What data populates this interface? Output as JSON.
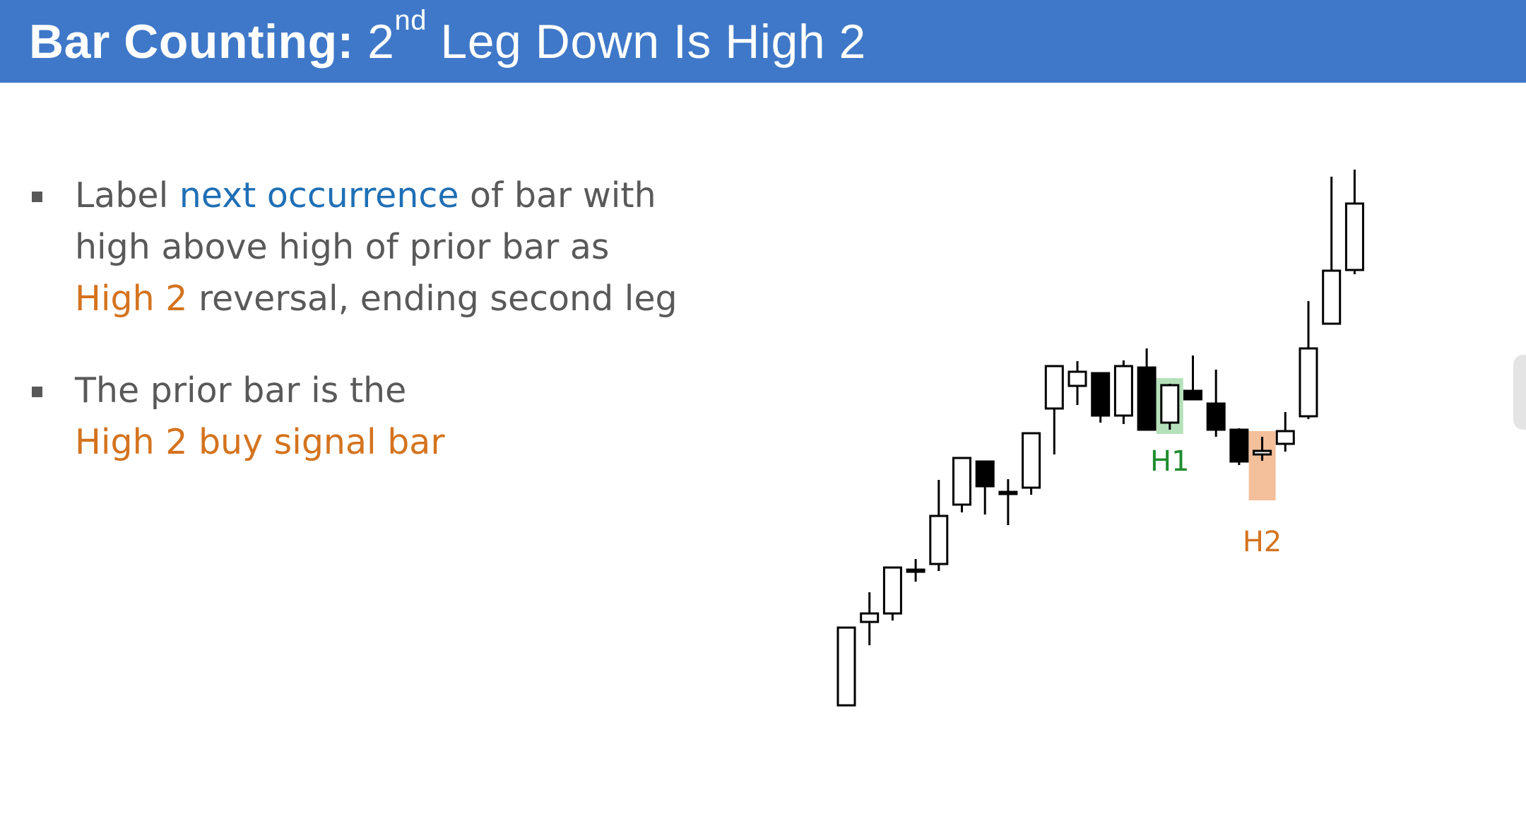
{
  "title": {
    "bold_part": "Bar Counting:",
    "part_2": "2",
    "superscript": "nd",
    "rest": "Leg Down Is High 2"
  },
  "bullets": [
    {
      "pre": "Label",
      "highlight": "next occurrence",
      "mid": "of bar with high above high of prior bar as",
      "orange": "High 2",
      "post": "reversal, ending second leg"
    },
    {
      "pre": "The prior bar is the",
      "orange": "High 2 buy signal bar"
    }
  ],
  "colors": {
    "header": "#3f78c8",
    "highlight_blue": "#1f6fb5",
    "h1_green": "#1e8c2e",
    "h1_box": "#a8dcae",
    "h2_orange": "#d4731e",
    "h2_box": "#f2b48a"
  },
  "chart_data": {
    "type": "candlestick",
    "y_scale": "price, top = higher",
    "bars": [
      {
        "o": 110,
        "h": 110,
        "l": 0,
        "c": 0,
        "bull": true
      },
      {
        "o": 118,
        "h": 160,
        "l": 85,
        "c": 130,
        "bull": true
      },
      {
        "o": 130,
        "h": 190,
        "l": 120,
        "c": 195,
        "bull": true
      },
      {
        "o": 192,
        "h": 207,
        "l": 175,
        "c": 192,
        "bull": true
      },
      {
        "o": 200,
        "h": 319,
        "l": 190,
        "c": 268,
        "bull": true
      },
      {
        "o": 284,
        "h": 350,
        "l": 273,
        "c": 350,
        "bull": true
      },
      {
        "o": 345,
        "h": 345,
        "l": 270,
        "c": 310,
        "bull": false
      },
      {
        "o": 302,
        "h": 320,
        "l": 255,
        "c": 302,
        "bull": true
      },
      {
        "o": 308,
        "h": 385,
        "l": 298,
        "c": 385,
        "bull": true
      },
      {
        "o": 420,
        "h": 480,
        "l": 355,
        "c": 480,
        "bull": true
      },
      {
        "o": 452,
        "h": 487,
        "l": 425,
        "c": 472,
        "bull": true
      },
      {
        "o": 470,
        "h": 470,
        "l": 400,
        "c": 410,
        "bull": false
      },
      {
        "o": 410,
        "h": 488,
        "l": 398,
        "c": 480,
        "bull": true
      },
      {
        "o": 478,
        "h": 505,
        "l": 390,
        "c": 390,
        "bull": false
      },
      {
        "o": 400,
        "h": 455,
        "l": 390,
        "c": 453,
        "bull": true,
        "highlight": "H1"
      },
      {
        "o": 445,
        "h": 495,
        "l": 440,
        "c": 433,
        "bull": false
      },
      {
        "o": 427,
        "h": 475,
        "l": 380,
        "c": 390,
        "bull": false
      },
      {
        "o": 390,
        "h": 392,
        "l": 340,
        "c": 345,
        "bull": false
      },
      {
        "o": 355,
        "h": 380,
        "l": 346,
        "c": 360,
        "bull": true,
        "highlight": "H2"
      },
      {
        "o": 370,
        "h": 415,
        "l": 359,
        "c": 388,
        "bull": true
      },
      {
        "o": 409,
        "h": 572,
        "l": 405,
        "c": 505,
        "bull": true
      },
      {
        "o": 540,
        "h": 748,
        "l": 540,
        "c": 615,
        "bull": true
      },
      {
        "o": 616,
        "h": 758,
        "l": 610,
        "c": 710,
        "bull": true
      }
    ],
    "annotations": [
      {
        "label": "H1",
        "bar_index": 14
      },
      {
        "label": "H2",
        "bar_index": 18
      }
    ]
  }
}
